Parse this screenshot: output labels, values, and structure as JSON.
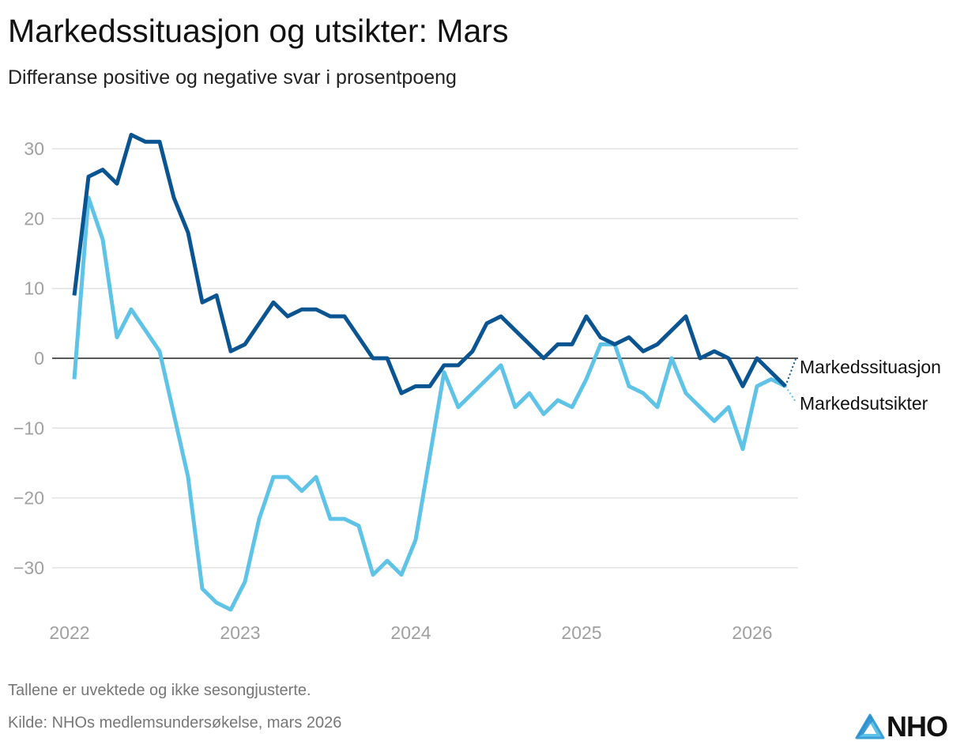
{
  "title": "Markedssituasjon og utsikter: Mars",
  "subtitle": "Differanse positive og negative svar i prosentpoeng",
  "footer": {
    "note": "Tallene er uvektede og ikke sesongjusterte.",
    "source": "Kilde: NHOs medlemsundersøkelse, mars 2026",
    "logo": "NHO"
  },
  "chart_data": {
    "type": "line",
    "title": "Markedssituasjon og utsikter: Mars",
    "xlabel": "",
    "ylabel": "Differanse positive og negative svar i prosentpoeng",
    "x_start": "2022-01",
    "x_frequency": "monthly",
    "x_ticks": [
      "2022",
      "2023",
      "2024",
      "2025",
      "2026"
    ],
    "y_ticks": [
      30,
      20,
      10,
      0,
      -10,
      -20,
      -30
    ],
    "y_tick_labels": [
      "30",
      "20",
      "10",
      "0",
      "−10",
      "−20",
      "−30"
    ],
    "ylim": [
      -37,
      34
    ],
    "grid": true,
    "legend": "direct labels at right end",
    "series": [
      {
        "name": "Markedssituasjon",
        "color": "#0a5591",
        "values": [
          9,
          26,
          27,
          25,
          32,
          31,
          31,
          23,
          18,
          8,
          9,
          1,
          2,
          5,
          8,
          6,
          7,
          7,
          6,
          6,
          3,
          0,
          0,
          -5,
          -4,
          -4,
          -1,
          -1,
          1,
          5,
          6,
          4,
          2,
          0,
          2,
          2,
          6,
          3,
          2,
          3,
          1,
          2,
          4,
          6,
          0,
          1,
          0,
          -4,
          0,
          -2,
          -4
        ]
      },
      {
        "name": "Markedsutsikter",
        "color": "#5ec3e7",
        "values": [
          -3,
          23,
          17,
          3,
          7,
          4,
          1,
          -8,
          -17,
          -33,
          -35,
          -36,
          -32,
          -23,
          -17,
          -17,
          -19,
          -17,
          -23,
          -23,
          -24,
          -31,
          -29,
          -31,
          -26,
          -14,
          -2,
          -7,
          -5,
          -3,
          -1,
          -7,
          -5,
          -8,
          -6,
          -7,
          -3,
          2,
          2,
          -4,
          -5,
          -7,
          0,
          -5,
          -7,
          -9,
          -7,
          -13,
          -4,
          -3,
          -4
        ]
      }
    ]
  }
}
